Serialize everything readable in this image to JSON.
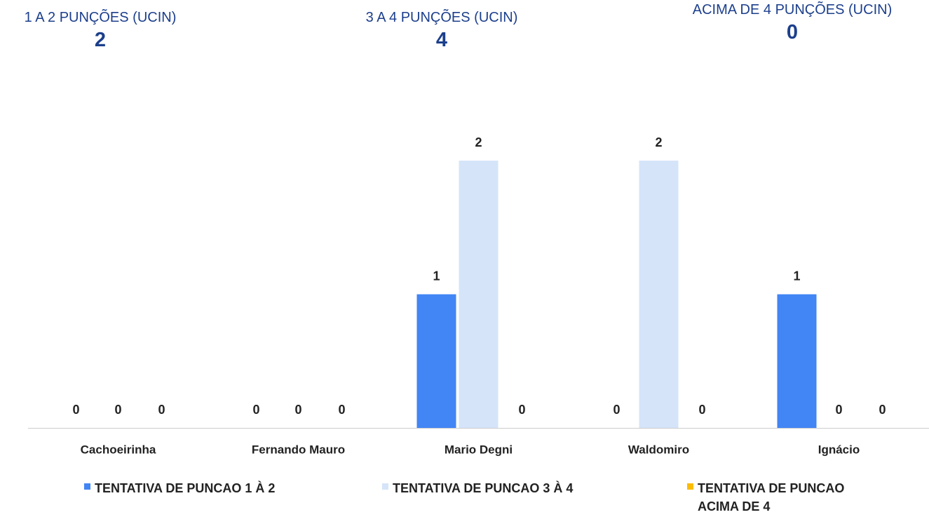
{
  "kpis": [
    {
      "label": "1 A 2 PUNÇÕES (UCIN)",
      "value": 2
    },
    {
      "label": "3 A 4 PUNÇÕES (UCIN)",
      "value": 4
    },
    {
      "label": "ACIMA DE 4 PUNÇÕES (UCIN)",
      "value": 0
    }
  ],
  "chart_data": {
    "type": "bar",
    "categories": [
      "Cachoeirinha",
      "Fernando Mauro",
      "Mario Degni",
      "Waldomiro",
      "Ignácio"
    ],
    "series": [
      {
        "name": "TENTATIVA DE PUNCAO 1 À 2",
        "color": "#4285f4",
        "values": [
          0,
          0,
          1,
          0,
          1
        ]
      },
      {
        "name": "TENTATIVA DE PUNCAO 3 À 4",
        "color": "#d5e4f9",
        "values": [
          0,
          0,
          2,
          2,
          0
        ]
      },
      {
        "name": "TENTATIVA DE PUNCAO ACIMA DE 4",
        "color": "#fbbc04",
        "values": [
          0,
          0,
          0,
          0,
          0
        ]
      }
    ],
    "legend": "bottom"
  }
}
